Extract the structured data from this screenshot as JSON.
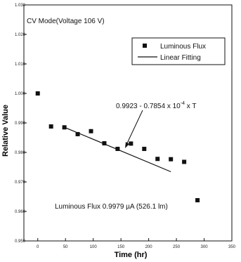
{
  "chart_data": {
    "type": "scatter",
    "title": "",
    "xlabel": "Time (hr)",
    "ylabel": "Relative Value",
    "xlim": [
      -25,
      350
    ],
    "ylim": [
      0.95,
      1.03
    ],
    "x_ticks": [
      0,
      50,
      100,
      150,
      200,
      250,
      300,
      350
    ],
    "y_ticks": [
      0.95,
      0.96,
      0.97,
      0.98,
      0.99,
      1.0,
      1.01,
      1.02,
      1.03
    ],
    "y_tick_labels": [
      "0.950",
      "0.960",
      "0.970",
      "0.980",
      "0.990",
      "1.000",
      "1.010",
      "1.020",
      "1.030"
    ],
    "series": [
      {
        "name": "Luminous Flux",
        "marker": "square",
        "color": "#111111",
        "x": [
          0,
          24,
          48,
          72,
          96,
          120,
          144,
          168,
          192,
          216,
          240,
          264,
          288
        ],
        "y": [
          1.0,
          0.9888,
          0.9885,
          0.9862,
          0.9872,
          0.9831,
          0.9812,
          0.983,
          0.9812,
          0.9778,
          0.9777,
          0.9768,
          0.9638
        ]
      }
    ],
    "fit": {
      "name": "Linear Fitting",
      "intercept": 0.9923,
      "slope": -7.854e-05,
      "x_range": [
        48,
        240
      ],
      "color": "#111111"
    },
    "annotations": {
      "mode": "CV Mode(Voltage 106 V)",
      "equation": "0.9923 - 0.7854 x 10",
      "equation_exp": "-4",
      "equation_tail": " x T",
      "flux_note": "Luminous Flux  0.9979 µA (526.1 lm)"
    },
    "legend": {
      "position": "top-right",
      "items": [
        "Luminous Flux",
        "Linear Fitting"
      ]
    },
    "grid": false
  }
}
